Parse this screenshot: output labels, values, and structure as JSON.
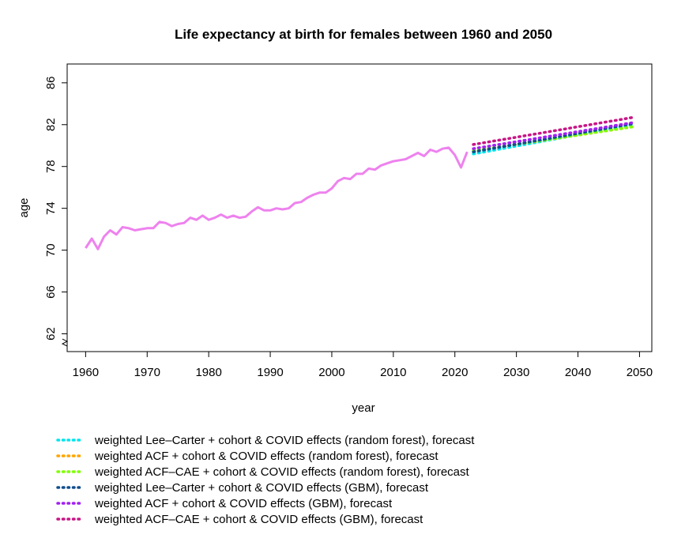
{
  "chart_data": {
    "type": "line",
    "title": "Life expectancy at birth for females between 1960 and 2050",
    "xlabel": "year",
    "ylabel": "age",
    "xlim": [
      1957,
      2052
    ],
    "ylim": [
      60.3,
      87.8
    ],
    "x_ticks": [
      1960,
      1970,
      1980,
      1990,
      2000,
      2010,
      2020,
      2030,
      2040,
      2050
    ],
    "y_ticks": [
      62,
      66,
      70,
      74,
      78,
      82,
      86
    ],
    "axis_break": "y-axis near bottom",
    "grid": false,
    "legend_position": "bottom-left, below plot",
    "historical": {
      "color": "#ee82ee",
      "x": [
        1960,
        1961,
        1962,
        1963,
        1964,
        1965,
        1966,
        1967,
        1968,
        1969,
        1970,
        1971,
        1972,
        1973,
        1974,
        1975,
        1976,
        1977,
        1978,
        1979,
        1980,
        1981,
        1982,
        1983,
        1984,
        1985,
        1986,
        1987,
        1988,
        1989,
        1990,
        1991,
        1992,
        1993,
        1994,
        1995,
        1996,
        1997,
        1998,
        1999,
        2000,
        2001,
        2002,
        2003,
        2004,
        2005,
        2006,
        2007,
        2008,
        2009,
        2010,
        2011,
        2012,
        2013,
        2014,
        2015,
        2016,
        2017,
        2018,
        2019,
        2020,
        2021,
        2022
      ],
      "y": [
        70.2,
        71.1,
        70.1,
        71.3,
        71.9,
        71.5,
        72.2,
        72.1,
        71.9,
        72.0,
        72.1,
        72.1,
        72.7,
        72.6,
        72.3,
        72.5,
        72.6,
        73.1,
        72.9,
        73.3,
        72.9,
        73.1,
        73.4,
        73.1,
        73.3,
        73.1,
        73.2,
        73.7,
        74.1,
        73.8,
        73.8,
        74.0,
        73.9,
        74.0,
        74.5,
        74.6,
        75.0,
        75.3,
        75.5,
        75.5,
        75.9,
        76.6,
        76.9,
        76.8,
        77.3,
        77.3,
        77.8,
        77.7,
        78.1,
        78.3,
        78.5,
        78.6,
        78.7,
        79.0,
        79.3,
        79.0,
        79.6,
        79.4,
        79.7,
        79.8,
        79.1,
        77.9,
        79.4
      ]
    },
    "forecast_x": [
      2023,
      2024,
      2025,
      2026,
      2027,
      2028,
      2029,
      2030,
      2031,
      2032,
      2033,
      2034,
      2035,
      2036,
      2037,
      2038,
      2039,
      2040,
      2041,
      2042,
      2043,
      2044,
      2045,
      2046,
      2047,
      2048,
      2049
    ],
    "series": [
      {
        "name": "weighted Lee–Carter + cohort & COVID effects (random forest), forecast",
        "color": "#00e5ee",
        "start": 79.2,
        "end": 82.0
      },
      {
        "name": "weighted ACF + cohort & COVID effects (random forest), forecast",
        "color": "#ffa500",
        "start": 79.5,
        "end": 81.8
      },
      {
        "name": "weighted ACF–CAE + cohort & COVID effects (random forest), forecast",
        "color": "#7fff00",
        "start": 79.5,
        "end": 81.8
      },
      {
        "name": "weighted Lee–Carter + cohort & COVID effects (GBM), forecast",
        "color": "#104e8b",
        "start": 79.4,
        "end": 82.1
      },
      {
        "name": "weighted ACF + cohort & COVID effects (GBM), forecast",
        "color": "#a020f0",
        "start": 79.7,
        "end": 82.2
      },
      {
        "name": "weighted ACF–CAE + cohort & COVID effects (GBM), forecast",
        "color": "#c71585",
        "start": 80.1,
        "end": 82.7
      }
    ]
  }
}
